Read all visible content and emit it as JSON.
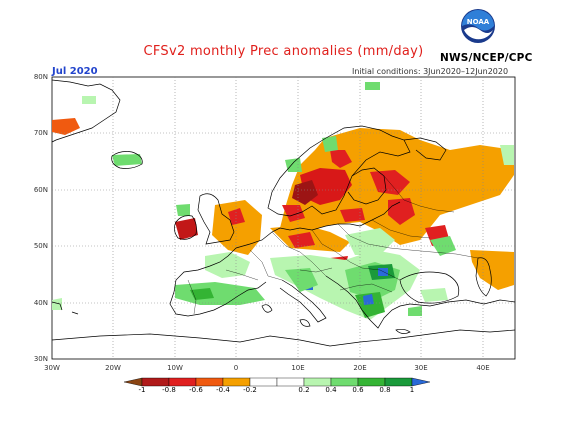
{
  "header": {
    "title": "CFSv2 monthly Prec anomalies (mm/day)",
    "agency": "NWS/NCEP/CPC",
    "month": "Jul 2020",
    "initial_conditions": "Initial conditions: 3Jun2020–12Jun2020",
    "logo_text": "NOAA"
  },
  "map": {
    "y_ticks": [
      "80N",
      "70N",
      "60N",
      "50N",
      "40N",
      "30N"
    ],
    "x_ticks": [
      "30W",
      "20W",
      "10W",
      "0",
      "10E",
      "20E",
      "30E",
      "40E"
    ]
  },
  "colorbar": {
    "labels": [
      "-1",
      "-0.8",
      "-0.6",
      "-0.4",
      "-0.2",
      "0.2",
      "0.4",
      "0.6",
      "0.8",
      "1"
    ],
    "colors": {
      "below": "#8b4513",
      "c1": "#b01a1a",
      "c2": "#e02020",
      "c3": "#f05a10",
      "c4": "#f5a000",
      "neutral": "#ffffff",
      "c6": "#b8f5b0",
      "c7": "#6fdc6f",
      "c8": "#34b434",
      "c9": "#1a9a3a",
      "above": "#2a6ad8"
    }
  }
}
